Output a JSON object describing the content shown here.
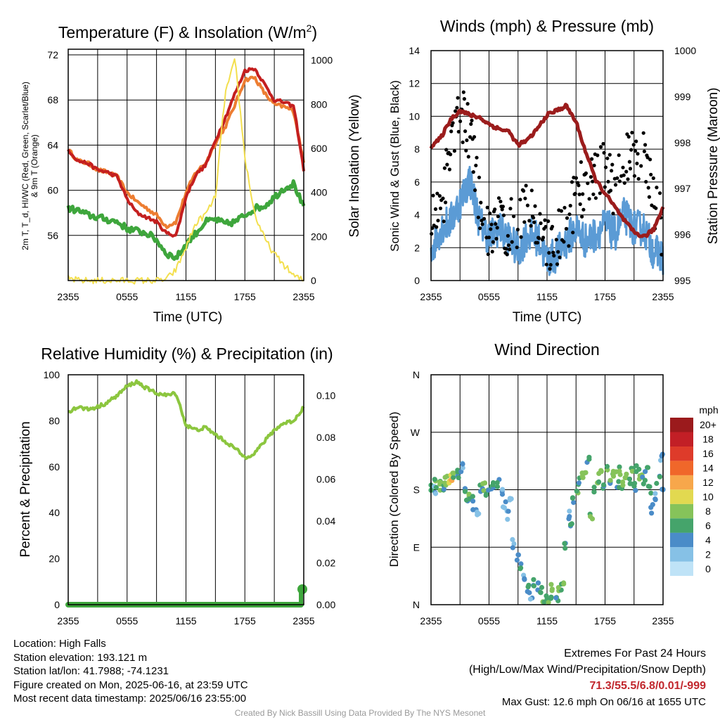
{
  "chart_data": [
    {
      "type": "line",
      "title": "Temperature (F) & Insolation (W/m²)",
      "xlabel": "Time (UTC)",
      "ylabel_left": "2m T, T_d, HI/WC (Red, Green, Scarlet/Blue) & 9m T (Orange)",
      "ylabel_right": "Solar Insolation (Yellow)",
      "x_ticks": [
        "2355",
        "0555",
        "1155",
        "1755",
        "2355"
      ],
      "ylim": [
        52,
        72.5
      ],
      "y_ticks": [
        56,
        60,
        64,
        68,
        72
      ],
      "y2lim": [
        0,
        1050
      ],
      "y2_ticks": [
        0,
        200,
        400,
        600,
        800,
        1000
      ],
      "x_hours": [
        0,
        1,
        2,
        3,
        4,
        5,
        6,
        7,
        8,
        9,
        10,
        11,
        12,
        13,
        14,
        15,
        16,
        17,
        18,
        19,
        20,
        21,
        22,
        23,
        24
      ],
      "series": [
        {
          "color": "#ed7d31",
          "axis": "left",
          "values": [
            63.6,
            62.6,
            62.4,
            61.8,
            61.6,
            61.2,
            59.8,
            59.0,
            58.4,
            57.8,
            56.8,
            57.2,
            59.8,
            61.6,
            62.4,
            64.2,
            65.6,
            67.6,
            69.8,
            70.0,
            68.6,
            67.6,
            67.4,
            67.0,
            62.4
          ]
        },
        {
          "color": "#c41f1f",
          "axis": "left",
          "values": [
            63.6,
            62.6,
            62.4,
            61.8,
            61.6,
            61.2,
            59.2,
            58.0,
            57.6,
            57.2,
            56.2,
            56.0,
            59.4,
            61.4,
            62.2,
            64.4,
            66.4,
            68.6,
            70.6,
            70.8,
            69.4,
            68.0,
            67.8,
            67.4,
            61.8
          ]
        },
        {
          "color": "#3ea63c",
          "axis": "left",
          "values": [
            58.4,
            58.2,
            57.8,
            57.6,
            57.4,
            57.2,
            56.6,
            56.4,
            56.2,
            55.6,
            54.4,
            54.0,
            55.2,
            56.2,
            57.2,
            57.4,
            57.0,
            57.2,
            57.8,
            58.4,
            58.6,
            59.4,
            60.2,
            60.6,
            58.4
          ]
        },
        {
          "color": "#f3df4e",
          "axis": "right",
          "values": [
            10,
            0,
            0,
            0,
            0,
            0,
            0,
            0,
            0,
            0,
            5,
            50,
            150,
            260,
            300,
            380,
            850,
            1000,
            560,
            300,
            190,
            120,
            70,
            20,
            0
          ]
        }
      ]
    },
    {
      "type": "line",
      "title": "Winds (mph) & Pressure (mb)",
      "xlabel": "Time (UTC)",
      "ylabel_left": "Sonic Wind & Gust (Blue, Black)",
      "ylabel_right": "Station Pressure (Maroon)",
      "x_ticks": [
        "2355",
        "0555",
        "1155",
        "1755",
        "2355"
      ],
      "ylim": [
        0,
        14
      ],
      "y_ticks": [
        0,
        2,
        4,
        6,
        8,
        10,
        12,
        14
      ],
      "y2lim": [
        995,
        1000
      ],
      "y2_ticks": [
        995,
        996,
        997,
        998,
        999,
        1000
      ],
      "x_hours": [
        0,
        1,
        2,
        3,
        4,
        5,
        6,
        7,
        8,
        9,
        10,
        11,
        12,
        13,
        14,
        15,
        16,
        17,
        18,
        19,
        20,
        21,
        22,
        23,
        24
      ],
      "series": [
        {
          "name": "Sonic Wind",
          "color": "#5b9bd5",
          "axis": "left",
          "type": "line",
          "values": [
            1.8,
            3.2,
            3.6,
            4.8,
            6.2,
            3.6,
            2.6,
            3.2,
            2.6,
            1.8,
            2.8,
            2.6,
            1.2,
            1.6,
            2.4,
            3.2,
            2.4,
            2.8,
            3.4,
            2.8,
            4.0,
            3.2,
            3.2,
            1.8,
            1.4
          ]
        },
        {
          "name": "Gust",
          "color": "#000000",
          "axis": "left",
          "type": "scatter",
          "values": [
            3.6,
            4.2,
            7.6,
            10.4,
            9.0,
            5.0,
            3.2,
            3.8,
            3.0,
            3.6,
            5.8,
            3.2,
            2.2,
            2.4,
            3.4,
            5.2,
            6.0,
            6.4,
            6.8,
            5.4,
            7.0,
            7.8,
            7.4,
            5.0,
            3.0
          ]
        },
        {
          "name": "Station Pressure",
          "color": "#9b1c1c",
          "axis": "right",
          "type": "line",
          "values": [
            997.9,
            998.1,
            998.5,
            998.7,
            998.6,
            998.55,
            998.4,
            998.3,
            998.25,
            997.95,
            998.05,
            998.3,
            998.6,
            998.7,
            998.8,
            998.45,
            997.8,
            997.2,
            996.9,
            996.6,
            996.3,
            996.05,
            995.95,
            996.1,
            996.6
          ]
        }
      ]
    },
    {
      "type": "line",
      "title": "Relative Humidity (%) & Precipitation (in)",
      "ylabel_left": "Percent & Precipitation",
      "x_ticks": [
        "2355",
        "0555",
        "1155",
        "1755",
        "2355"
      ],
      "ylim": [
        0,
        100
      ],
      "y_ticks": [
        0,
        20,
        40,
        60,
        80,
        100
      ],
      "y2lim": [
        0,
        0.11
      ],
      "y2_ticks": [
        "0.00",
        "0.02",
        "0.04",
        "0.06",
        "0.08",
        "0.10"
      ],
      "x_hours": [
        0,
        1,
        2,
        3,
        4,
        5,
        6,
        7,
        8,
        9,
        10,
        11,
        12,
        13,
        14,
        15,
        16,
        17,
        18,
        19,
        20,
        21,
        22,
        23,
        24
      ],
      "series": [
        {
          "color": "#8cc63f",
          "axis": "left",
          "values": [
            84,
            86,
            85,
            86,
            88,
            91,
            95,
            97,
            94,
            92,
            91,
            92,
            78,
            76,
            77,
            74,
            71,
            68,
            64,
            66,
            71,
            76,
            79,
            80,
            86
          ]
        },
        {
          "color": "#3ea63c",
          "axis": "right",
          "values": [
            0,
            0,
            0,
            0,
            0,
            0,
            0,
            0,
            0,
            0,
            0,
            0,
            0,
            0,
            0,
            0,
            0,
            0,
            0,
            0,
            0,
            0,
            0,
            0,
            0.01
          ]
        }
      ]
    },
    {
      "type": "scatter",
      "title": "Wind Direction",
      "ylabel_left": "Direction (Colored By Speed)",
      "x_ticks": [
        "2355",
        "0555",
        "1155",
        "1755",
        "2355"
      ],
      "y_ticks": [
        "N",
        "E",
        "S",
        "W",
        "N"
      ],
      "ylim": [
        0,
        360
      ],
      "colorbar_title": "mph",
      "colorbar_labels": [
        "0",
        "2",
        "4",
        "6",
        "8",
        "10",
        "12",
        "14",
        "16",
        "18",
        "20+"
      ],
      "colorbar_colors": [
        "#bfe3f7",
        "#86c1e6",
        "#4a8cc8",
        "#45a46b",
        "#86c35a",
        "#e2d950",
        "#f7a74b",
        "#f0672a",
        "#de3b2a",
        "#c21f26",
        "#9b1a1c"
      ],
      "points": [
        [
          0.1,
          183,
          3
        ],
        [
          0.3,
          178,
          2
        ],
        [
          0.5,
          190,
          4
        ],
        [
          0.8,
          186,
          4
        ],
        [
          1.0,
          192,
          4
        ],
        [
          1.2,
          185,
          3
        ],
        [
          1.5,
          194,
          4
        ],
        [
          1.8,
          196,
          5
        ],
        [
          2.1,
          200,
          6
        ],
        [
          2.4,
          205,
          4
        ],
        [
          2.7,
          208,
          3
        ],
        [
          3.0,
          202,
          3
        ],
        [
          3.2,
          220,
          2
        ],
        [
          3.5,
          175,
          3
        ],
        [
          3.7,
          160,
          3
        ],
        [
          3.9,
          170,
          4
        ],
        [
          4.2,
          165,
          3
        ],
        [
          4.5,
          150,
          2
        ],
        [
          4.8,
          144,
          1
        ],
        [
          5.2,
          181,
          3
        ],
        [
          5.5,
          185,
          4
        ],
        [
          5.8,
          178,
          4
        ],
        [
          6.1,
          180,
          3
        ],
        [
          6.5,
          186,
          3
        ],
        [
          7.0,
          190,
          3
        ],
        [
          7.3,
          175,
          2
        ],
        [
          7.6,
          155,
          2
        ],
        [
          7.9,
          140,
          2
        ],
        [
          8.2,
          165,
          1
        ],
        [
          8.6,
          95,
          2
        ],
        [
          8.9,
          72,
          2
        ],
        [
          9.3,
          60,
          3
        ],
        [
          9.7,
          46,
          2
        ],
        [
          10.0,
          26,
          3
        ],
        [
          10.3,
          13,
          2
        ],
        [
          10.7,
          33,
          3
        ],
        [
          11.0,
          30,
          3
        ],
        [
          11.3,
          20,
          3
        ],
        [
          11.6,
          8,
          4
        ],
        [
          12.0,
          10,
          3
        ],
        [
          12.3,
          6,
          4
        ],
        [
          12.6,
          25,
          4
        ],
        [
          13.0,
          12,
          3
        ],
        [
          13.3,
          20,
          4
        ],
        [
          13.6,
          30,
          4
        ],
        [
          13.9,
          90,
          3
        ],
        [
          14.2,
          140,
          2
        ],
        [
          14.5,
          125,
          3
        ],
        [
          14.8,
          165,
          3
        ],
        [
          15.1,
          180,
          4
        ],
        [
          15.4,
          192,
          3
        ],
        [
          15.7,
          200,
          4
        ],
        [
          16.0,
          210,
          4
        ],
        [
          16.3,
          225,
          3
        ],
        [
          16.6,
          140,
          4
        ],
        [
          16.9,
          180,
          3
        ],
        [
          17.2,
          195,
          4
        ],
        [
          17.5,
          205,
          4
        ],
        [
          17.8,
          185,
          3
        ],
        [
          18.1,
          210,
          4
        ],
        [
          18.4,
          190,
          3
        ],
        [
          18.7,
          200,
          4
        ],
        [
          19.0,
          205,
          4
        ],
        [
          19.3,
          190,
          3
        ],
        [
          19.6,
          210,
          4
        ],
        [
          19.9,
          188,
          4
        ],
        [
          20.2,
          200,
          4
        ],
        [
          20.5,
          195,
          3
        ],
        [
          20.8,
          210,
          4
        ],
        [
          21.1,
          185,
          3
        ],
        [
          21.4,
          215,
          3
        ],
        [
          21.7,
          200,
          4
        ],
        [
          22.0,
          195,
          3
        ],
        [
          22.3,
          210,
          3
        ],
        [
          22.6,
          180,
          3
        ],
        [
          22.9,
          150,
          2
        ],
        [
          23.2,
          170,
          2
        ],
        [
          23.5,
          195,
          3
        ],
        [
          23.8,
          230,
          2
        ],
        [
          24.0,
          185,
          2
        ]
      ]
    }
  ],
  "info": {
    "location": "Location: High Falls",
    "elevation": "Station elevation: 193.121 m",
    "latlon": "Station lat/lon: 41.7988; -74.1231",
    "created": "Figure created on Mon, 2025-06-16, at 23:59 UTC",
    "recent": "Most recent data timestamp: 2025/06/16 23:55:00",
    "extremes_title": "Extremes For Past 24 Hours",
    "extremes_sub": "(High/Low/Max Wind/Precipitation/Snow Depth)",
    "extremes_values": "71.3/55.5/6.8/0.01/-999",
    "max_gust": "Max Gust: 12.6 mph On 06/16 at 1655 UTC",
    "credit": "Created By Nick Bassill Using Data Provided By The NYS Mesonet"
  }
}
